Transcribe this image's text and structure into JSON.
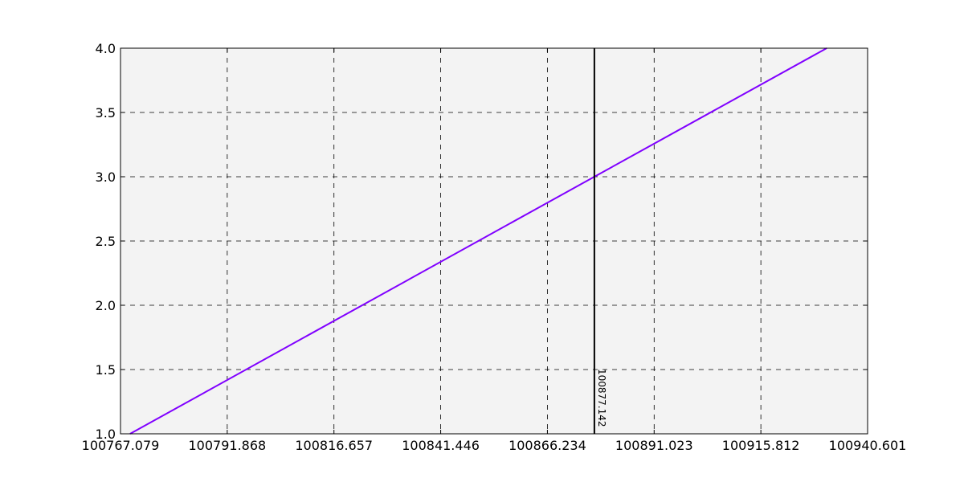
{
  "chart_data": {
    "type": "line",
    "title": "",
    "xlabel": "",
    "ylabel": "",
    "xlim": [
      100767.079,
      100940.601
    ],
    "ylim": [
      1.0,
      4.0
    ],
    "grid": true,
    "grid_style": "dashed",
    "plot_background": "#f3f3f3",
    "x_tick_values": [
      100767.079,
      100791.868,
      100816.657,
      100841.446,
      100866.234,
      100891.023,
      100915.812,
      100940.601
    ],
    "x_tick_labels": [
      "100767.079",
      "100791.868",
      "100816.657",
      "100841.446",
      "100866.234",
      "100891.023",
      "100915.812",
      "100940.601"
    ],
    "y_tick_values": [
      1.0,
      1.5,
      2.0,
      2.5,
      3.0,
      3.5,
      4.0
    ],
    "y_tick_labels": [
      "1.0",
      "1.5",
      "2.0",
      "2.5",
      "3.0",
      "3.5",
      "4.0"
    ],
    "series": [
      {
        "color": "#8000ff",
        "x": [
          100769.3,
          100877.142,
          100931.1
        ],
        "y": [
          1.0,
          3.0,
          4.0
        ]
      }
    ],
    "vertical_line": {
      "x": 100877.142,
      "label": "100877.142",
      "color": "#000000"
    }
  }
}
